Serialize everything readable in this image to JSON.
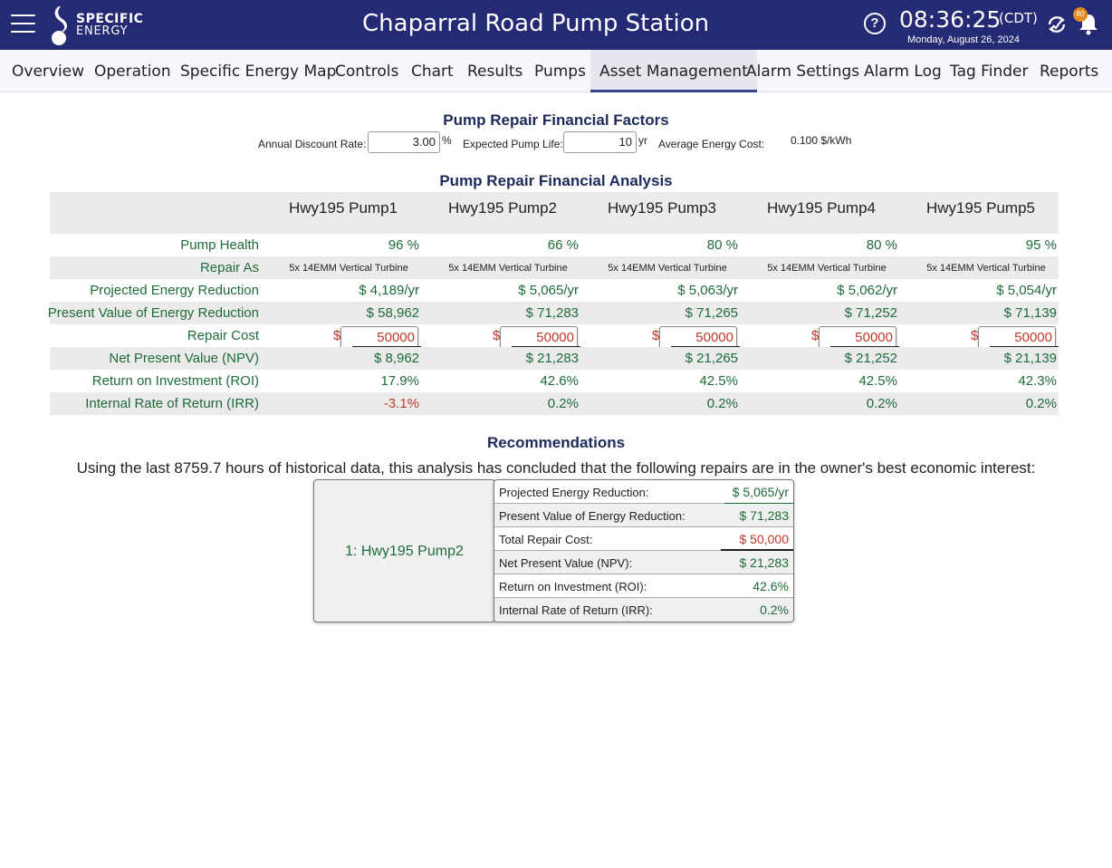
{
  "header": {
    "logo_line1": "SPECIFIC",
    "logo_line2": "ENERGY",
    "title": "Chaparral Road Pump Station",
    "time": "08:36:25",
    "timezone": "(CDT)",
    "date": "Monday, August 26, 2024",
    "notification_count": "80",
    "icons": [
      "menu-icon",
      "help-icon",
      "sync-icon",
      "bell-icon"
    ]
  },
  "nav": {
    "tabs": [
      "Overview",
      "Operation",
      "Specific Energy Map",
      "Controls",
      "Chart",
      "Results",
      "Pumps",
      "Asset Management",
      "Alarm Settings",
      "Alarm Log",
      "Tag Finder",
      "Reports"
    ],
    "active": "Asset Management"
  },
  "factors": {
    "title": "Pump Repair Financial Factors",
    "discount_label": "Annual Discount Rate:",
    "discount_value": "3.00",
    "discount_unit": "%",
    "life_label": "Expected Pump Life:",
    "life_value": "10",
    "life_unit": "yr",
    "energy_label": "Average Energy Cost:",
    "energy_value": "0.100 $/kWh"
  },
  "analysis": {
    "title": "Pump Repair Financial Analysis",
    "pumps": [
      "Hwy195 Pump1",
      "Hwy195 Pump2",
      "Hwy195 Pump3",
      "Hwy195 Pump4",
      "Hwy195 Pump5"
    ],
    "row_labels": {
      "health": "Pump Health",
      "repair_as": "Repair As",
      "energy_reduction": "Projected Energy Reduction",
      "pv_energy": "Present Value of Energy Reduction",
      "repair_cost": "Repair Cost",
      "npv": "Net Present Value (NPV)",
      "roi": "Return on Investment (ROI)",
      "irr": "Internal Rate of Return (IRR)"
    },
    "health": [
      "96 %",
      "66 %",
      "80 %",
      "80 %",
      "95 %"
    ],
    "repair_as": [
      "5x 14EMM Vertical Turbine",
      "5x 14EMM Vertical Turbine",
      "5x 14EMM Vertical Turbine",
      "5x 14EMM Vertical Turbine",
      "5x 14EMM Vertical Turbine"
    ],
    "energy_reduction": [
      "$ 4,189/yr",
      "$ 5,065/yr",
      "$ 5,063/yr",
      "$ 5,062/yr",
      "$ 5,054/yr"
    ],
    "pv_energy": [
      "$ 58,962",
      "$ 71,283",
      "$ 71,265",
      "$ 71,252",
      "$ 71,139"
    ],
    "currency_symbol": "$",
    "repair_cost": [
      "50000",
      "50000",
      "50000",
      "50000",
      "50000"
    ],
    "npv": [
      "$ 8,962",
      "$ 21,283",
      "$ 21,265",
      "$ 21,252",
      "$ 21,139"
    ],
    "roi": [
      "17.9%",
      "42.6%",
      "42.5%",
      "42.5%",
      "42.3%"
    ],
    "irr": [
      "-3.1%",
      "0.2%",
      "0.2%",
      "0.2%",
      "0.2%"
    ]
  },
  "recommendations": {
    "title": "Recommendations",
    "text": "Using the last 8759.7 hours of historical data, this analysis has concluded that the following repairs are in the owner's best economic interest:",
    "card_name": "1: Hwy195 Pump2",
    "rows": [
      {
        "key": "Projected Energy Reduction:",
        "value": "$ 5,065/yr"
      },
      {
        "key": "Present Value of Energy Reduction:",
        "value": "$ 71,283"
      },
      {
        "key": "Total Repair Cost:",
        "value": "$ 50,000"
      },
      {
        "key": "Net Present Value (NPV):",
        "value": "$ 21,283"
      },
      {
        "key": "Return on Investment (ROI):",
        "value": "42.6%"
      },
      {
        "key": "Internal Rate of Return (IRR):",
        "value": "0.2%"
      }
    ]
  }
}
